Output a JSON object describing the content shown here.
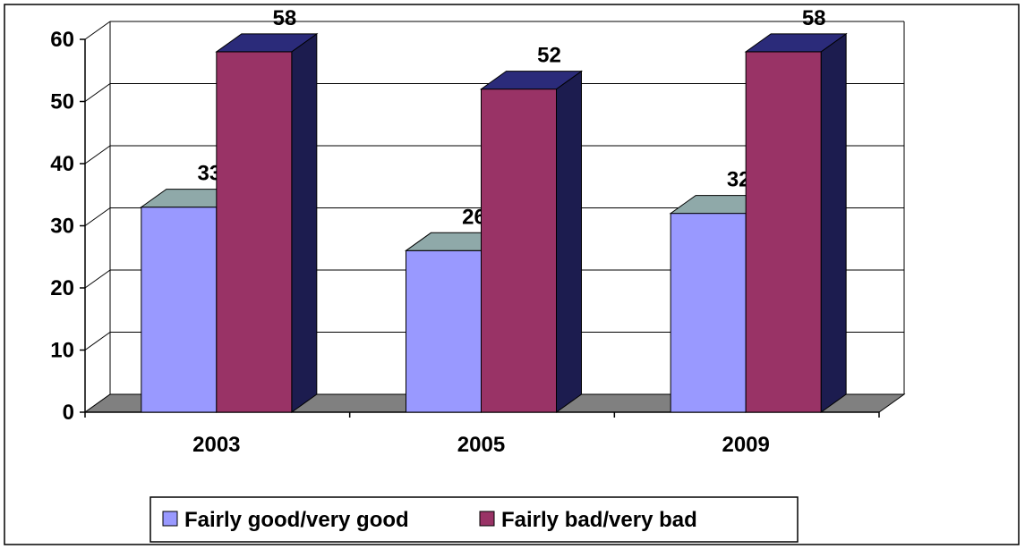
{
  "chart_data": {
    "type": "bar",
    "categories": [
      "2003",
      "2005",
      "2009"
    ],
    "series": [
      {
        "name": "Fairly good/very good",
        "values": [
          33,
          26,
          32
        ],
        "color": "#9999ff",
        "top_color": "#8fa9a9"
      },
      {
        "name": "Fairly bad/very bad",
        "values": [
          58,
          52,
          58
        ],
        "color": "#993366",
        "top_color": "#2b2b7a",
        "side_color": "#1c1c4f"
      }
    ],
    "ylim": [
      0,
      60
    ],
    "yticks": [
      "0",
      "10",
      "20",
      "30",
      "40",
      "50",
      "60"
    ],
    "grid": true,
    "three_d": true,
    "legend_position": "bottom",
    "floor_color": "#808080",
    "gridline_color": "#000000"
  }
}
